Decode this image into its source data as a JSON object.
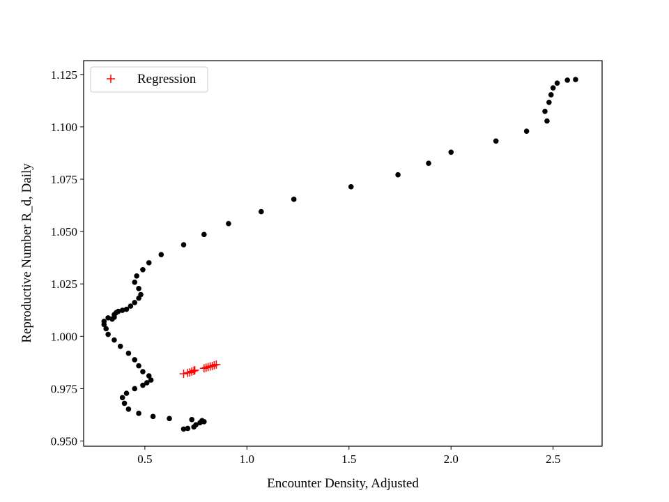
{
  "chart_data": {
    "type": "scatter",
    "title": "",
    "xlabel": "Encounter Density, Adjusted",
    "ylabel": "Reproductive Number R_d, Daily",
    "xlim": [
      0.2,
      2.74
    ],
    "ylim": [
      0.9475,
      1.1316
    ],
    "xticks": [
      "0.5",
      "1.0",
      "1.5",
      "2.0",
      "2.5"
    ],
    "xtick_values": [
      0.5,
      1.0,
      1.5,
      2.0,
      2.5
    ],
    "yticks": [
      "0.950",
      "0.975",
      "1.000",
      "1.025",
      "1.050",
      "1.075",
      "1.100",
      "1.125"
    ],
    "ytick_values": [
      0.95,
      0.975,
      1.0,
      1.025,
      1.05,
      1.075,
      1.1,
      1.125
    ],
    "grid": false,
    "legend_position": "upper-left",
    "series": [
      {
        "marker": "dot",
        "color": "#000000",
        "points": [
          [
            2.61,
            1.1226
          ],
          [
            2.57,
            1.1223
          ],
          [
            2.52,
            1.1209
          ],
          [
            2.5,
            1.1186
          ],
          [
            2.49,
            1.1153
          ],
          [
            2.48,
            1.1117
          ],
          [
            2.46,
            1.1074
          ],
          [
            2.47,
            1.1028
          ],
          [
            2.37,
            1.0979
          ],
          [
            2.22,
            1.0932
          ],
          [
            2.0,
            1.0879
          ],
          [
            1.89,
            1.0826
          ],
          [
            1.74,
            1.0771
          ],
          [
            1.51,
            1.0714
          ],
          [
            1.23,
            1.0654
          ],
          [
            1.07,
            1.0595
          ],
          [
            0.91,
            1.0538
          ],
          [
            0.79,
            1.0486
          ],
          [
            0.69,
            1.0437
          ],
          [
            0.58,
            1.039
          ],
          [
            0.52,
            1.0351
          ],
          [
            0.49,
            1.0318
          ],
          [
            0.46,
            1.0288
          ],
          [
            0.45,
            1.0258
          ],
          [
            0.47,
            1.0228
          ],
          [
            0.48,
            1.0199
          ],
          [
            0.47,
            1.0182
          ],
          [
            0.45,
            1.0161
          ],
          [
            0.43,
            1.0144
          ],
          [
            0.41,
            1.0129
          ],
          [
            0.39,
            1.0124
          ],
          [
            0.37,
            1.0119
          ],
          [
            0.36,
            1.0113
          ],
          [
            0.35,
            1.0103
          ],
          [
            0.35,
            1.0091
          ],
          [
            0.34,
            1.0082
          ],
          [
            0.32,
            1.0088
          ],
          [
            0.3,
            1.0071
          ],
          [
            0.3,
            1.0056
          ],
          [
            0.31,
            1.0036
          ],
          [
            0.32,
            1.0009
          ],
          [
            0.35,
            0.9982
          ],
          [
            0.38,
            0.9952
          ],
          [
            0.42,
            0.9919
          ],
          [
            0.45,
            0.9888
          ],
          [
            0.47,
            0.9859
          ],
          [
            0.49,
            0.9831
          ],
          [
            0.52,
            0.9811
          ],
          [
            0.53,
            0.9791
          ],
          [
            0.51,
            0.9778
          ],
          [
            0.49,
            0.9766
          ],
          [
            0.45,
            0.975
          ],
          [
            0.41,
            0.9728
          ],
          [
            0.39,
            0.9707
          ],
          [
            0.4,
            0.968
          ],
          [
            0.42,
            0.9652
          ],
          [
            0.47,
            0.9632
          ],
          [
            0.54,
            0.9617
          ],
          [
            0.62,
            0.9607
          ],
          [
            0.73,
            0.9602
          ],
          [
            0.78,
            0.9597
          ],
          [
            0.79,
            0.9592
          ],
          [
            0.77,
            0.9587
          ],
          [
            0.75,
            0.9577
          ],
          [
            0.74,
            0.9567
          ],
          [
            0.71,
            0.956
          ],
          [
            0.69,
            0.9557
          ]
        ]
      },
      {
        "name": "Regression",
        "marker": "plus",
        "color": "#ff0000",
        "points": [
          [
            0.69,
            0.9821
          ],
          [
            0.71,
            0.9825
          ],
          [
            0.72,
            0.9827
          ],
          [
            0.73,
            0.9832
          ],
          [
            0.74,
            0.9835
          ],
          [
            0.745,
            0.9838
          ],
          [
            0.79,
            0.9847
          ],
          [
            0.8,
            0.985
          ],
          [
            0.81,
            0.9853
          ],
          [
            0.82,
            0.9856
          ],
          [
            0.83,
            0.9858
          ],
          [
            0.84,
            0.9862
          ],
          [
            0.85,
            0.9865
          ]
        ]
      }
    ]
  }
}
